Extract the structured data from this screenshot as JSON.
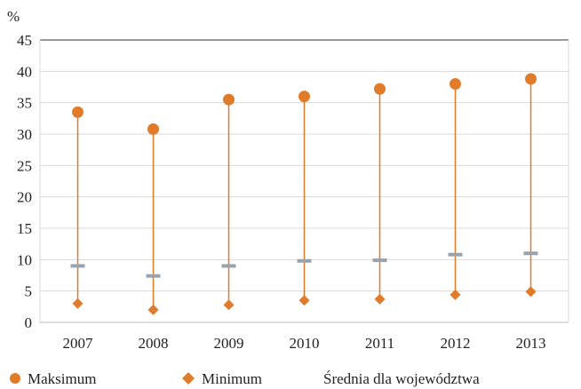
{
  "chart_data": {
    "type": "high-low",
    "y_unit_label": "%",
    "categories": [
      "2007",
      "2008",
      "2009",
      "2010",
      "2011",
      "2012",
      "2013"
    ],
    "y_ticks": [
      0,
      5,
      10,
      15,
      20,
      25,
      30,
      35,
      40,
      45
    ],
    "ylim": [
      0,
      45
    ],
    "grid": "horizontal",
    "legend_position": "bottom",
    "series": [
      {
        "name": "Maksimum",
        "marker": "circle",
        "color": "#E07B2A",
        "values": [
          33.5,
          30.8,
          35.5,
          36.0,
          37.2,
          38.0,
          38.8
        ]
      },
      {
        "name": "Minimum",
        "marker": "diamond",
        "color": "#E07B2A",
        "values": [
          3.0,
          2.0,
          2.8,
          3.5,
          3.7,
          4.4,
          4.9
        ]
      },
      {
        "name": "Średnia dla województwa",
        "marker": "dash",
        "color": "#9AA3AD",
        "values": [
          9.0,
          7.4,
          9.0,
          9.8,
          9.9,
          10.8,
          11.0
        ]
      }
    ],
    "range_line_color": "#E07B2A"
  }
}
